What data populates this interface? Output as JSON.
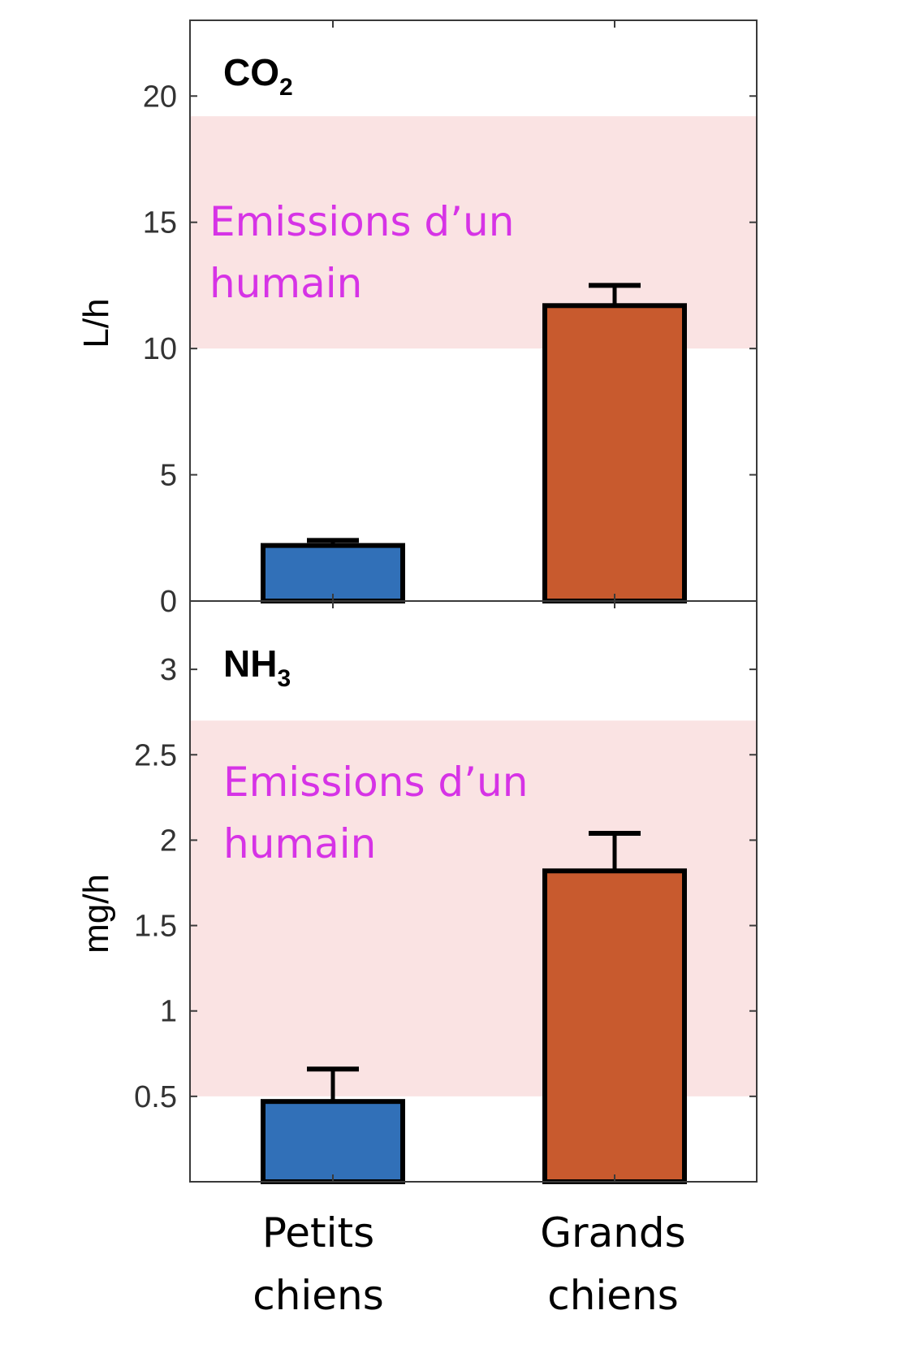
{
  "chart_data": [
    {
      "type": "bar",
      "title": "CO",
      "title_subscript": "2",
      "ylabel": "L/h",
      "ylim": [
        0,
        23
      ],
      "yticks": [
        0,
        5,
        10,
        15,
        20
      ],
      "ytick_labels": [
        "0",
        "5",
        "10",
        "15",
        "20"
      ],
      "categories": [
        "Petits chiens",
        "Grands chiens"
      ],
      "values": [
        2.2,
        11.7
      ],
      "error_upper": [
        2.4,
        12.5
      ],
      "bar_colors": [
        "#3170b8",
        "#c85a2e"
      ],
      "reference_band": {
        "from": 10,
        "to": 19.2,
        "label_lines": [
          "Emissions d’un",
          "humain"
        ],
        "color": "#fae3e3"
      }
    },
    {
      "type": "bar",
      "title": "NH",
      "title_subscript": "3",
      "ylabel": "mg/h",
      "ylim": [
        0,
        3.4
      ],
      "yticks": [
        0.5,
        1,
        1.5,
        2,
        2.5,
        3
      ],
      "ytick_labels": [
        "0.5",
        "1",
        "1.5",
        "2",
        "2.5",
        "3"
      ],
      "categories": [
        "Petits chiens",
        "Grands chiens"
      ],
      "values": [
        0.47,
        1.82
      ],
      "error_upper": [
        0.66,
        2.04
      ],
      "bar_colors": [
        "#3170b8",
        "#c85a2e"
      ],
      "reference_band": {
        "from": 0.5,
        "to": 2.7,
        "label_lines": [
          "Emissions d’un",
          "humain"
        ],
        "color": "#fae3e3"
      }
    }
  ],
  "x_category_labels": [
    {
      "lines": [
        "Petits",
        "chiens"
      ]
    },
    {
      "lines": [
        "Grands",
        "chiens"
      ]
    }
  ]
}
